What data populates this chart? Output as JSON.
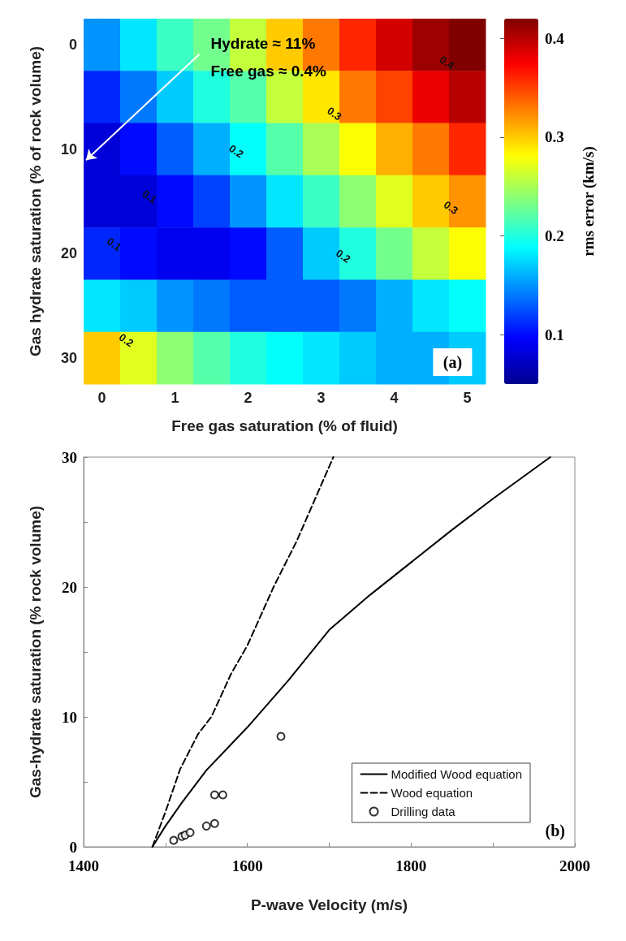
{
  "chart_data": [
    {
      "type": "heatmap",
      "xlabel": "Free gas saturation (% of fluid)",
      "ylabel": "Gas hydrate saturation (% of rock volume)",
      "clabel": "rms error (km/s)",
      "categories": [
        "0",
        null,
        "1",
        null,
        "2",
        null,
        "3",
        null,
        "4",
        null,
        "5"
      ],
      "y_categories": [
        "0",
        null,
        "10",
        null,
        "20",
        null,
        "30"
      ],
      "cells": [
        [
          0.15,
          0.18,
          0.21,
          0.23,
          0.26,
          0.3,
          0.33,
          0.36,
          0.39,
          0.41,
          0.42
        ],
        [
          0.11,
          0.14,
          0.17,
          0.2,
          0.22,
          0.26,
          0.29,
          0.33,
          0.35,
          0.38,
          0.4
        ],
        [
          0.08,
          0.1,
          0.13,
          0.16,
          0.19,
          0.22,
          0.25,
          0.28,
          0.31,
          0.33,
          0.36
        ],
        [
          0.08,
          0.08,
          0.1,
          0.12,
          0.15,
          0.18,
          0.21,
          0.24,
          0.27,
          0.3,
          0.32
        ],
        [
          0.11,
          0.1,
          0.09,
          0.09,
          0.1,
          0.13,
          0.17,
          0.2,
          0.23,
          0.26,
          0.28
        ],
        [
          0.18,
          0.17,
          0.15,
          0.14,
          0.13,
          0.13,
          0.13,
          0.14,
          0.16,
          0.18,
          0.19
        ],
        [
          0.3,
          0.27,
          0.24,
          0.22,
          0.2,
          0.19,
          0.18,
          0.17,
          0.16,
          0.16,
          0.17
        ]
      ],
      "clim": [
        0.05,
        0.42
      ],
      "cticks": [
        0.1,
        0.2,
        0.3,
        0.4
      ],
      "annotations": [
        "Hydrate ≈ 11%\nFree gas ≈ 0.4%",
        "0.4",
        "0.3",
        "0.3",
        "0.2",
        "0.2",
        "0.1",
        "0.1",
        "0.2",
        "(a)"
      ]
    },
    {
      "type": "line",
      "xlabel": "P-wave Velocity (m/s)",
      "ylabel": "Gas-hydrate saturation (% rock volume)",
      "xlim": [
        1400,
        2000
      ],
      "xticks": [
        1400,
        {
          "value": 1500,
          "label": null
        },
        1600,
        {
          "value": 1700,
          "label": null
        },
        1800,
        {
          "value": 1900,
          "label": null
        },
        2000
      ],
      "ylim": [
        0,
        30
      ],
      "yticks": [
        0,
        {
          "value": 5,
          "label": null
        },
        10,
        {
          "value": 15,
          "label": null
        },
        20,
        {
          "value": 25,
          "label": null
        },
        30
      ],
      "legend": "bottom right",
      "series": [
        {
          "name": "Modified Wood equation",
          "color": "#000000",
          "line_style": "solid",
          "marker": "none",
          "x": [
            1484,
            1500,
            1520,
            1550,
            1600,
            1650,
            1700,
            1750,
            1800,
            1850,
            1900,
            1970
          ],
          "values": [
            0,
            1.6,
            3.4,
            5.9,
            9.2,
            12.8,
            16.7,
            19.4,
            21.9,
            24.4,
            26.8,
            30
          ]
        },
        {
          "name": "Wood equation",
          "color": "#000000",
          "line_style": "dashed",
          "marker": "none",
          "x": [
            1484,
            1500,
            1518,
            1540,
            1556,
            1580,
            1600,
            1632,
            1660,
            1705
          ],
          "values": [
            0,
            2.7,
            6,
            8.7,
            10,
            13.3,
            15.5,
            20,
            23.5,
            30
          ]
        },
        {
          "name": "Drilling data",
          "type": "scatter",
          "color": "#000000",
          "marker": "circle",
          "x": [
            1510,
            1520,
            1524,
            1530,
            1550,
            1560,
            1560,
            1570,
            1641
          ],
          "values": [
            0.5,
            0.8,
            0.9,
            1.1,
            1.6,
            1.8,
            4.0,
            4.0,
            8.5
          ]
        }
      ],
      "annotations": [
        "(b)"
      ]
    }
  ]
}
